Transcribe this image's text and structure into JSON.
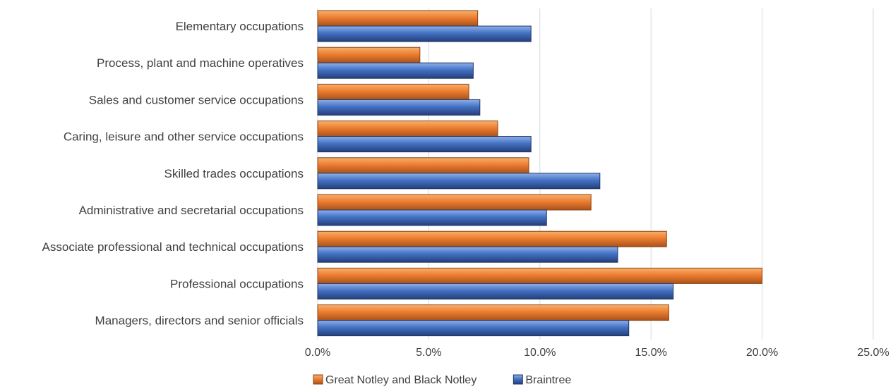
{
  "chart_data": {
    "type": "bar",
    "orientation": "horizontal",
    "categories": [
      "Elementary occupations",
      "Process, plant and machine operatives",
      "Sales and customer service occupations",
      "Caring, leisure and other service occupations",
      "Skilled trades occupations",
      "Administrative and secretarial occupations",
      "Associate professional and technical occupations",
      "Professional occupations",
      "Managers, directors and senior officials"
    ],
    "series": [
      {
        "name": "Great Notley and Black Notley",
        "color": "#ed7d31",
        "values": [
          7.2,
          4.6,
          6.8,
          8.1,
          9.5,
          12.3,
          15.7,
          20.0,
          15.8
        ]
      },
      {
        "name": "Braintree",
        "color": "#4472c4",
        "values": [
          9.6,
          7.0,
          7.3,
          9.6,
          12.7,
          10.3,
          13.5,
          16.0,
          14.0
        ]
      }
    ],
    "x_ticks": [
      "0.0%",
      "5.0%",
      "10.0%",
      "15.0%",
      "20.0%",
      "25.0%"
    ],
    "xlim": [
      0,
      25
    ],
    "grid": true,
    "legend_position": "bottom"
  }
}
